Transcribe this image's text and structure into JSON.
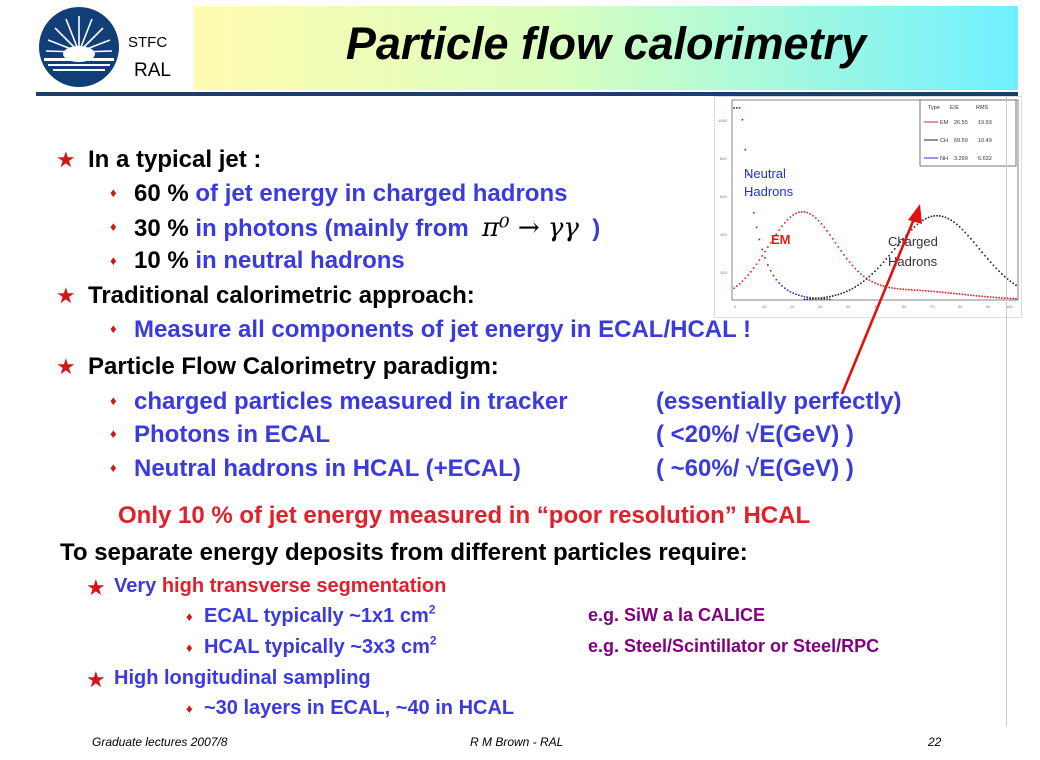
{
  "header": {
    "org_line1": "STFC",
    "org_line2": "RAL",
    "title": "Particle flow calorimetry"
  },
  "content": {
    "jet_heading": "In a typical jet :",
    "jet_items": [
      {
        "pct": "60 %",
        "text": "of jet energy in charged hadrons"
      },
      {
        "pct": "30 %",
        "text": "in photons  (mainly from",
        "math": "π⁰ → γγ",
        "close": ")"
      },
      {
        "pct": "10 %",
        "text": "in neutral hadrons"
      }
    ],
    "trad_heading": "Traditional calorimetric approach:",
    "trad_item": "Measure all components of jet energy in ECAL/HCAL !",
    "pfc_heading": "Particle Flow Calorimetry paradigm:",
    "pfc_items": [
      {
        "left": "charged particles measured in tracker",
        "right": "(essentially perfectly)"
      },
      {
        "left": "Photons in ECAL",
        "right": "( <20%/ √E(GeV) )"
      },
      {
        "left": "Neutral hadrons in HCAL (+ECAL)",
        "right": "( ~60%/ √E(GeV) )"
      }
    ],
    "highlight": "Only 10 % of jet energy measured in “poor resolution” HCAL",
    "sep_heading": "To separate energy deposits from different particles require:",
    "seg_prefix": "Very",
    "seg_highlight": "high transverse segmentation",
    "seg_items": [
      {
        "text": "ECAL typically ~1x1 cm",
        "sup": "2",
        "note": "e.g. SiW a la CALICE"
      },
      {
        "text": "HCAL typically ~3x3 cm",
        "sup": "2",
        "note": "e.g. Steel/Scintillator or Steel/RPC"
      }
    ],
    "long_heading": "High longitudinal sampling",
    "long_item": "~30 layers in ECAL, ~40 in HCAL"
  },
  "plot": {
    "legend_header": [
      "Type",
      "E/E",
      "RMS"
    ],
    "legend_rows": [
      {
        "label": "EM",
        "mean": "26.55",
        "rms": "19.93",
        "color": "#e02020"
      },
      {
        "label": "CH",
        "mean": "69.59",
        "rms": "10.49",
        "color": "#222222"
      },
      {
        "label": "NH",
        "mean": "3.299",
        "rms": "6.632",
        "color": "#2030e0"
      }
    ],
    "labels": {
      "neutral": "Neutral\nHadrons",
      "em": "EM",
      "charged": "Charged\nHadrons"
    },
    "neutral_line1": "Neutral",
    "neutral_line2": "Hadrons",
    "charged_line1": "Charged",
    "charged_line2": "Hadrons"
  },
  "footer": {
    "left": "Graduate  lectures 2007/8",
    "center": "R M Brown - RAL",
    "page": "22"
  },
  "colors": {
    "bullet": "#d01818",
    "blue_text": "#3a3ae0",
    "red_text": "#e0202a",
    "purple_text": "#800080",
    "rule": "#1d3d6b"
  }
}
